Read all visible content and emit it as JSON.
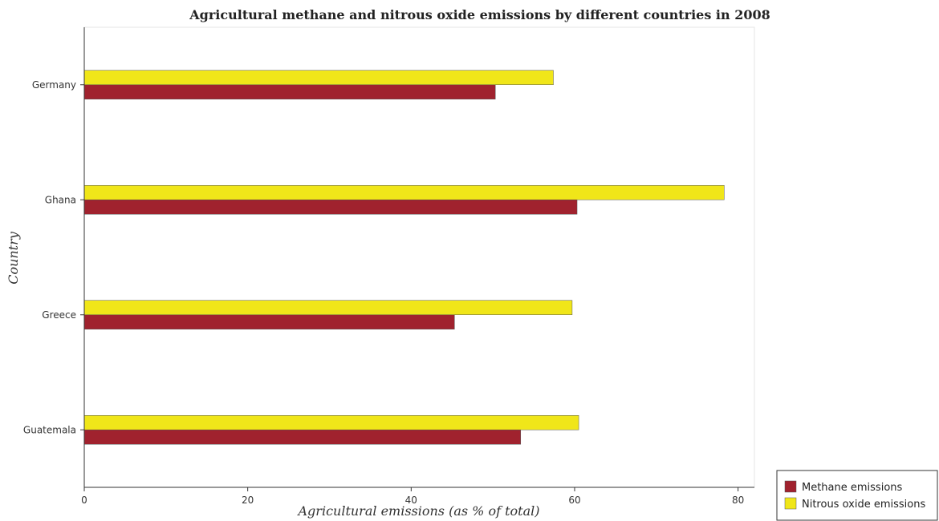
{
  "chart_data": {
    "type": "bar",
    "orientation": "horizontal",
    "title": "Agricultural methane and nitrous oxide emissions by different countries in 2008",
    "xlabel": "Agricultural emissions (as % of total)",
    "ylabel": "Country",
    "categories": [
      "Germany",
      "Ghana",
      "Greece",
      "Guatemala"
    ],
    "series": [
      {
        "name": "Methane emissions",
        "color": "#a0222e",
        "values": [
          50.3,
          60.3,
          45.3,
          53.4
        ]
      },
      {
        "name": "Nitrous oxide emissions",
        "color": "#f0e619",
        "values": [
          57.4,
          78.3,
          59.7,
          60.5
        ]
      }
    ],
    "xlim": [
      0,
      82
    ],
    "xticks": [
      0,
      20,
      40,
      60,
      80
    ],
    "grid": false,
    "legend_position": "bottom-right"
  }
}
